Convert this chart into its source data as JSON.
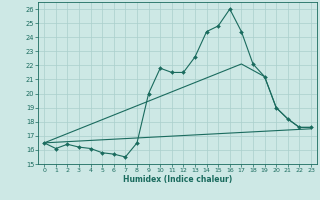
{
  "xlabel": "Humidex (Indice chaleur)",
  "bg_color": "#cde8e5",
  "line_color": "#1a6b5e",
  "grid_color": "#aacfcc",
  "xlim": [
    -0.5,
    23.5
  ],
  "ylim": [
    15,
    26.5
  ],
  "yticks": [
    15,
    16,
    17,
    18,
    19,
    20,
    21,
    22,
    23,
    24,
    25,
    26
  ],
  "xticks": [
    0,
    1,
    2,
    3,
    4,
    5,
    6,
    7,
    8,
    9,
    10,
    11,
    12,
    13,
    14,
    15,
    16,
    17,
    18,
    19,
    20,
    21,
    22,
    23
  ],
  "series1_x": [
    0,
    1,
    2,
    3,
    4,
    5,
    6,
    7,
    8,
    9,
    10,
    11,
    12,
    13,
    14,
    15,
    16,
    17,
    18,
    19,
    20,
    21,
    22,
    23
  ],
  "series1_y": [
    16.5,
    16.1,
    16.4,
    16.2,
    16.1,
    15.8,
    15.7,
    15.5,
    16.5,
    20.0,
    21.8,
    21.5,
    21.5,
    22.6,
    24.4,
    24.8,
    26.0,
    24.4,
    22.1,
    21.2,
    19.0,
    18.2,
    17.6,
    17.6
  ],
  "series2_x": [
    0,
    17,
    19,
    20,
    21,
    22,
    23
  ],
  "series2_y": [
    16.5,
    22.1,
    21.2,
    19.0,
    18.2,
    17.6,
    17.6
  ],
  "series3_x": [
    0,
    23
  ],
  "series3_y": [
    16.5,
    17.5
  ],
  "series4_x": [
    0,
    17
  ],
  "series4_y": [
    16.5,
    22.1
  ]
}
